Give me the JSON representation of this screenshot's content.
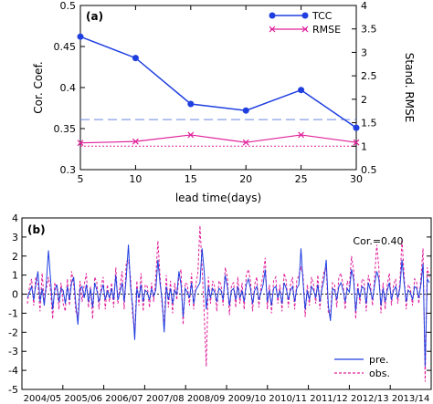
{
  "chart_data": [
    {
      "panel": "(a)",
      "type": "line",
      "xlabel": "lead time(days)",
      "ylabel": "Cor. Coef.",
      "y2label": "Stand. RMSE",
      "xlim": [
        5,
        30
      ],
      "ylim": [
        0.3,
        0.5
      ],
      "y2lim": [
        0.5,
        4
      ],
      "xticks": [
        "5",
        "10",
        "15",
        "20",
        "25",
        "30"
      ],
      "yticks": [
        "0.3",
        "0.35",
        "0.4",
        "0.45",
        "0.5"
      ],
      "y2ticks": [
        "0.5",
        "1",
        "1.5",
        "2",
        "2.5",
        "3",
        "3.5",
        "4"
      ],
      "grid": false,
      "legend_position": "top-right",
      "series": [
        {
          "name": "TCC",
          "axis": "left",
          "color": "#1f3fe0",
          "marker": "circle",
          "x": [
            5,
            10,
            15,
            20,
            25,
            30
          ],
          "y": [
            0.462,
            0.436,
            0.38,
            0.372,
            0.397,
            0.351
          ]
        },
        {
          "name": "RMSE",
          "axis": "right",
          "color": "#e0209a",
          "marker": "x",
          "x": [
            5,
            10,
            15,
            20,
            25,
            30
          ],
          "y": [
            1.07,
            1.1,
            1.24,
            1.08,
            1.24,
            1.08
          ]
        }
      ],
      "reference_lines": [
        {
          "axis": "left",
          "y": 0.361,
          "style": "dashed",
          "color": "#6b86e0"
        },
        {
          "axis": "right",
          "y": 1.0,
          "style": "dotted",
          "color": "#e0209a"
        }
      ]
    },
    {
      "panel": "(b)",
      "type": "line",
      "annotation": "Cor.=0.40",
      "ylim": [
        -5,
        4
      ],
      "yticks": [
        "-5",
        "-4",
        "-3",
        "-2",
        "-1",
        "0",
        "1",
        "2",
        "3",
        "4"
      ],
      "xticks": [
        "2004/05",
        "2005/06",
        "2006/07",
        "2007/08",
        "2008/09",
        "2009/10",
        "2010/11",
        "2011/12",
        "2012/13",
        "2013/14"
      ],
      "legend_position": "bottom-right",
      "zero_line": true,
      "series": [
        {
          "name": "pre.",
          "color": "#1f3fe0",
          "style": "solid",
          "y": [
            -0.2,
            0.1,
            0.4,
            -0.3,
            0.5,
            1.2,
            -0.4,
            0.3,
            -0.6,
            0.6,
            2.3,
            0.8,
            -0.8,
            0.2,
            0.5,
            -0.4,
            0.3,
            0.2,
            -0.5,
            0.4,
            -0.3,
            0.6,
            0.9,
            -0.5,
            -1.6,
            0.3,
            0.4,
            -0.2,
            0.5,
            -0.4,
            0.3,
            -0.7,
            0.6,
            0.2,
            -0.4,
            0.1,
            0.5,
            -0.3,
            0.2,
            -0.2,
            0.3,
            -0.3,
            1.0,
            -0.3,
            0.1,
            0.6,
            -0.4,
            0.9,
            2.6,
            0.4,
            -0.6,
            -2.4,
            0.3,
            -0.2,
            0.5,
            -0.4,
            0.2,
            0.1,
            -0.3,
            0.3,
            -0.1,
            0.2,
            1.8,
            0.6,
            -0.3,
            -2.0,
            0.4,
            -0.3,
            0.3,
            -0.5,
            0.2,
            0.0,
            1.2,
            0.5,
            -1.2,
            0.3,
            0.1,
            -0.2,
            0.6,
            -0.5,
            0.2,
            0.4,
            0.6,
            2.4,
            1.2,
            -0.8,
            0.4,
            -0.2,
            0.3,
            0.1,
            -0.4,
            0.3,
            0.2,
            -0.3,
            1.0,
            0.4,
            -0.6,
            0.2,
            0.3,
            -0.3,
            0.4,
            -0.2,
            0.2,
            -0.4,
            0.5,
            0.8,
            0.3,
            -0.5,
            0.2,
            0.4,
            -0.3,
            0.1,
            0.5,
            1.3,
            -0.4,
            0.2,
            -0.6,
            0.3,
            0.4,
            -0.2,
            0.2,
            -0.5,
            0.6,
            0.3,
            -0.3,
            0.2,
            0.4,
            -0.4,
            0.3,
            0.5,
            2.4,
            0.6,
            -0.8,
            0.2,
            -0.3,
            0.4,
            0.2,
            -0.2,
            0.5,
            -0.4,
            0.3,
            0.8,
            1.8,
            -0.6,
            -1.4,
            0.3,
            0.2,
            -0.3,
            0.4,
            0.6,
            0.2,
            -0.4,
            0.3,
            0.1,
            1.3,
            0.8,
            -0.9,
            0.3,
            -0.2,
            0.4,
            0.3,
            -0.5,
            0.6,
            0.2,
            -0.3,
            0.5,
            1.2,
            0.8,
            -0.6,
            0.3,
            -0.4,
            0.2,
            0.6,
            -0.3,
            0.2,
            0.4,
            -0.2,
            0.3,
            1.8,
            0.6,
            -0.4,
            0.2,
            0.1,
            -0.3,
            0.4,
            0.3,
            -0.2,
            0.5,
            1.6,
            -3.8,
            0.8,
            0.6
          ]
        },
        {
          "name": "obs.",
          "color": "#e0209a",
          "style": "dashed",
          "y": [
            -0.5,
            0.4,
            0.8,
            -0.6,
            0.9,
            0.6,
            -0.9,
            1.1,
            -0.4,
            0.3,
            0.9,
            0.2,
            -1.3,
            0.6,
            0.3,
            -0.8,
            0.6,
            -0.5,
            -0.9,
            0.8,
            -0.6,
            1.2,
            0.5,
            -0.9,
            -1.2,
            0.7,
            -0.4,
            0.5,
            1.1,
            -0.7,
            0.4,
            -1.3,
            0.9,
            0.6,
            -0.8,
            0.4,
            0.9,
            -0.8,
            0.5,
            -0.4,
            0.6,
            -0.7,
            1.4,
            -0.5,
            0.4,
            1.2,
            -0.8,
            1.7,
            1.8,
            0.9,
            -1.1,
            -2.0,
            0.7,
            -0.6,
            1.1,
            -0.9,
            0.5,
            0.4,
            -0.7,
            0.6,
            -0.4,
            0.9,
            2.8,
            1.0,
            -0.6,
            -1.6,
            1.0,
            -0.7,
            0.7,
            -1.0,
            0.6,
            -0.3,
            0.9,
            1.3,
            -1.6,
            0.6,
            0.5,
            -0.6,
            1.1,
            -0.8,
            0.5,
            1.1,
            3.6,
            1.4,
            -1.0,
            -3.8,
            0.9,
            -0.5,
            0.7,
            0.4,
            -0.9,
            0.7,
            0.5,
            -0.6,
            1.4,
            0.9,
            -1.1,
            0.5,
            0.6,
            -0.7,
            0.9,
            -0.5,
            0.6,
            -0.8,
            1.0,
            1.3,
            0.7,
            -0.9,
            0.5,
            0.9,
            -0.7,
            0.4,
            1.0,
            1.9,
            -0.8,
            0.5,
            -1.0,
            0.7,
            0.9,
            -0.5,
            0.5,
            -0.9,
            1.1,
            0.7,
            -0.7,
            0.5,
            0.9,
            -0.8,
            0.7,
            1.0,
            1.4,
            1.0,
            -1.2,
            0.5,
            -0.6,
            0.9,
            0.5,
            -0.5,
            1.0,
            -0.8,
            0.6,
            1.2,
            1.4,
            -1.0,
            -1.1,
            0.6,
            0.5,
            -0.7,
            0.9,
            1.1,
            0.5,
            -0.8,
            0.7,
            0.4,
            2.0,
            1.3,
            -1.3,
            0.6,
            -0.5,
            0.8,
            0.7,
            -0.9,
            1.0,
            0.5,
            -0.6,
            0.9,
            2.6,
            1.4,
            -1.0,
            0.6,
            -0.8,
            0.5,
            1.1,
            -0.6,
            0.5,
            0.8,
            -0.5,
            0.6,
            2.9,
            1.0,
            -0.8,
            0.5,
            0.3,
            -0.6,
            0.8,
            0.6,
            -0.5,
            0.9,
            2.4,
            -4.6,
            1.4,
            0.9
          ]
        }
      ]
    }
  ]
}
